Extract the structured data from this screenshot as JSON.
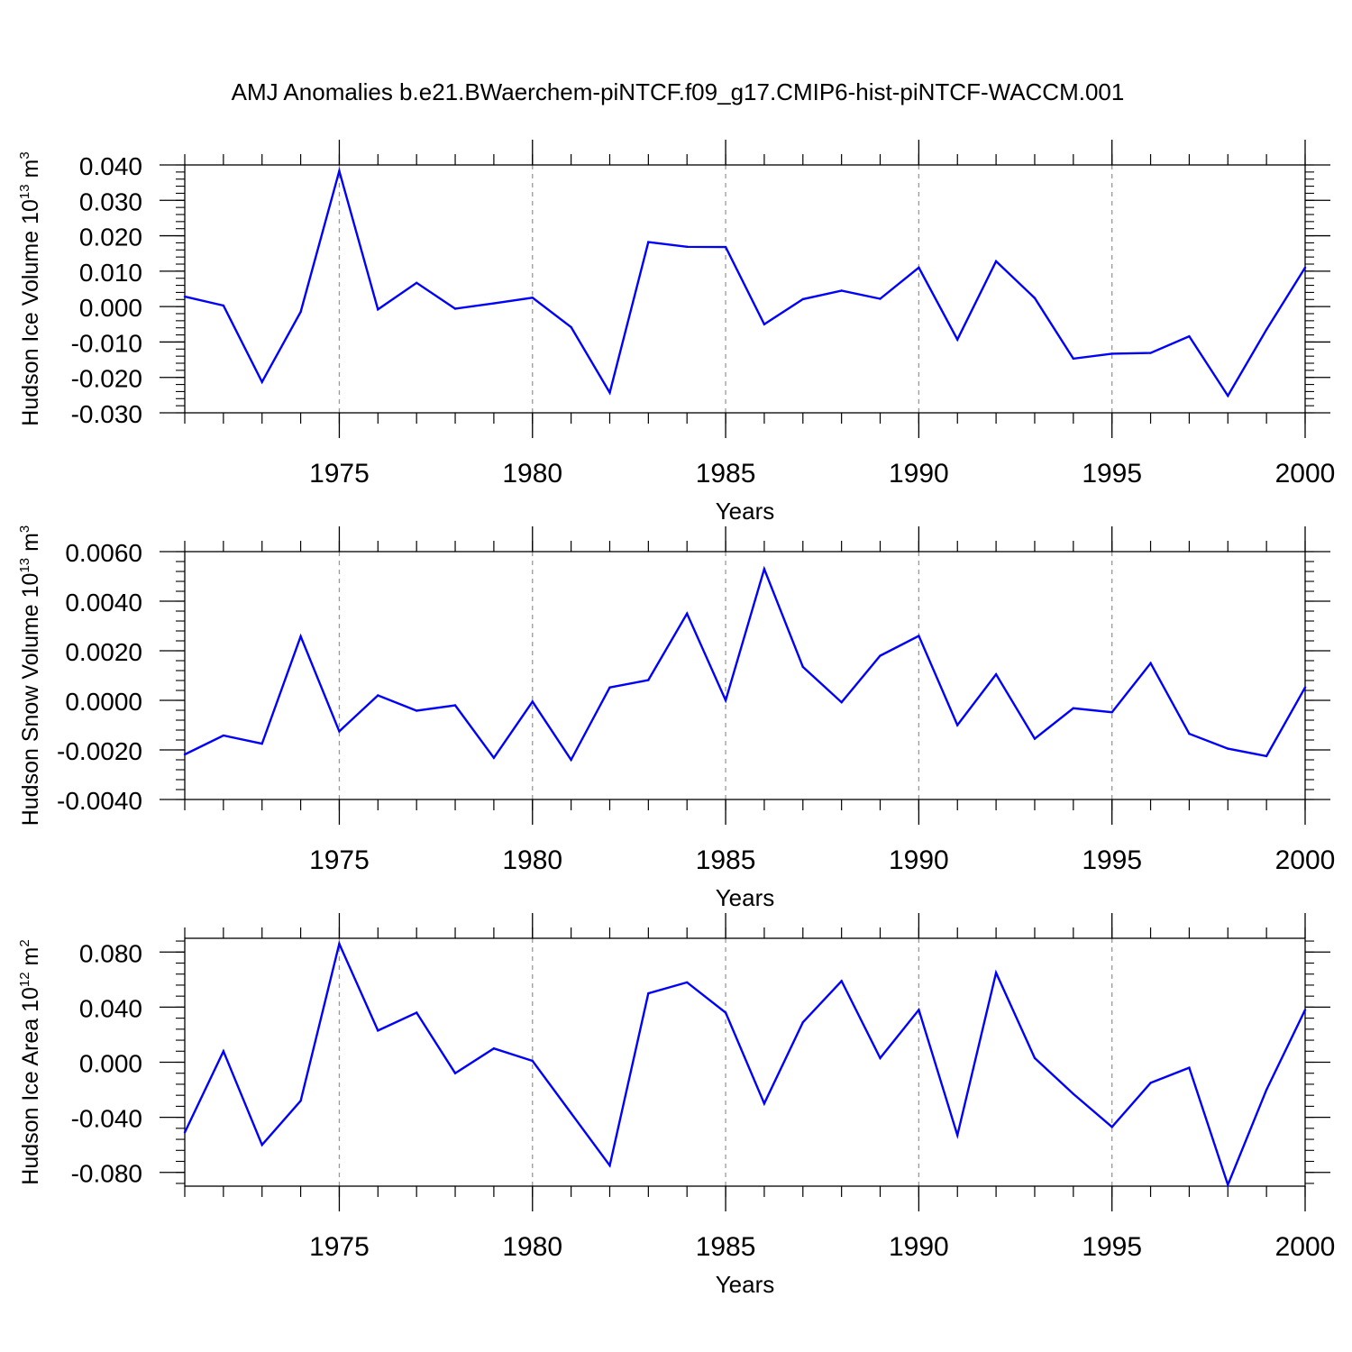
{
  "chart_data": {
    "title": "AMJ Anomalies b.e21.BWaerchem-piNTCF.f09_g17.CMIP6-hist-piNTCF-WACCM.001",
    "type": "line",
    "line_color": "#0000ff",
    "grid_color": "#999999",
    "years": [
      1971,
      1972,
      1973,
      1974,
      1975,
      1976,
      1977,
      1978,
      1979,
      1980,
      1981,
      1982,
      1983,
      1984,
      1985,
      1986,
      1987,
      1988,
      1989,
      1990,
      1991,
      1992,
      1993,
      1994,
      1995,
      1996,
      1997,
      1998,
      1999,
      2000
    ],
    "panels": [
      {
        "ylabel_main": "Hudson Ice Volume 10",
        "ylabel_exp": "13",
        "ylabel_unit": " m",
        "ylabel_unit_exp": "3",
        "xlabel": "Years",
        "xlim": [
          1971,
          2000
        ],
        "ylim": [
          -0.03,
          0.04
        ],
        "yticks": [
          -0.03,
          -0.02,
          -0.01,
          0.0,
          0.01,
          0.02,
          0.03,
          0.04
        ],
        "ytick_labels": [
          "-0.030",
          "-0.020",
          "-0.010",
          "0.000",
          "0.010",
          "0.020",
          "0.030",
          "0.040"
        ],
        "xticks": [
          1975,
          1980,
          1985,
          1990,
          1995,
          2000
        ],
        "xtick_labels": [
          "1975",
          "1980",
          "1985",
          "1990",
          "1995",
          "2000"
        ],
        "values": [
          0.0028,
          0.0003,
          -0.0213,
          -0.0015,
          0.0383,
          -0.0008,
          0.0067,
          -0.0006,
          0.0009,
          0.0025,
          -0.0058,
          -0.0243,
          0.0182,
          0.0169,
          0.0168,
          -0.005,
          0.0021,
          0.0045,
          0.0022,
          0.011,
          -0.0093,
          0.0128,
          0.0024,
          -0.0147,
          -0.0133,
          -0.0131,
          -0.0084,
          -0.0252,
          -0.0065,
          0.011
        ]
      },
      {
        "ylabel_main": "Hudson Snow Volume 10",
        "ylabel_exp": "13",
        "ylabel_unit": " m",
        "ylabel_unit_exp": "3",
        "xlabel": "Years",
        "xlim": [
          1971,
          2000
        ],
        "ylim": [
          -0.004,
          0.006
        ],
        "yticks": [
          -0.004,
          -0.002,
          0.0,
          0.002,
          0.004,
          0.006
        ],
        "ytick_labels": [
          "-0.0040",
          "-0.0020",
          "0.0000",
          "0.0020",
          "0.0040",
          "0.0060"
        ],
        "xticks": [
          1975,
          1980,
          1985,
          1990,
          1995,
          2000
        ],
        "xtick_labels": [
          "1975",
          "1980",
          "1985",
          "1990",
          "1995",
          "2000"
        ],
        "values": [
          -0.00218,
          -0.00142,
          -0.00175,
          0.00258,
          -0.00125,
          0.0002,
          -0.00042,
          -0.0002,
          -0.00232,
          -5e-05,
          -0.0024,
          0.00052,
          0.00082,
          0.0035,
          0.0,
          0.0053,
          0.00135,
          -8e-05,
          0.0018,
          0.0026,
          -0.001,
          0.00105,
          -0.00155,
          -0.00032,
          -0.00048,
          0.0015,
          -0.00135,
          -0.00195,
          -0.00225,
          0.00052
        ]
      },
      {
        "ylabel_main": "Hudson Ice Area 10",
        "ylabel_exp": "12",
        "ylabel_unit": " m",
        "ylabel_unit_exp": "2",
        "xlabel": "Years",
        "xlim": [
          1971,
          2000
        ],
        "ylim": [
          -0.09,
          0.09
        ],
        "yticks": [
          -0.08,
          -0.04,
          0.0,
          0.04,
          0.08
        ],
        "ytick_labels": [
          "-0.080",
          "-0.040",
          "0.000",
          "0.040",
          "0.080"
        ],
        "xticks": [
          1975,
          1980,
          1985,
          1990,
          1995,
          2000
        ],
        "xtick_labels": [
          "1975",
          "1980",
          "1985",
          "1990",
          "1995",
          "2000"
        ],
        "values": [
          -0.051,
          0.008,
          -0.06,
          -0.028,
          0.086,
          0.023,
          0.036,
          -0.008,
          0.01,
          0.001,
          -0.037,
          -0.075,
          0.05,
          0.058,
          0.036,
          -0.03,
          0.029,
          0.059,
          0.003,
          0.038,
          -0.053,
          0.065,
          0.003,
          -0.023,
          -0.047,
          -0.015,
          -0.004,
          -0.089,
          -0.02,
          0.038
        ]
      }
    ]
  }
}
